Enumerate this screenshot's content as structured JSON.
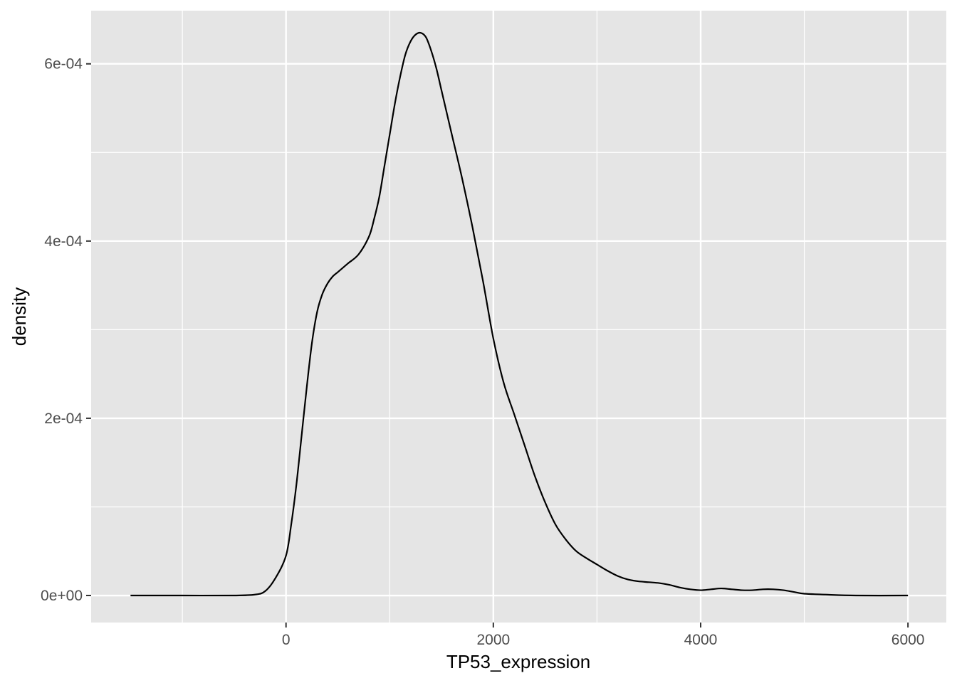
{
  "chart_data": {
    "type": "area",
    "title": "",
    "xlabel": "TP53_expression",
    "ylabel": "density",
    "xlim": [
      -1880,
      6370
    ],
    "ylim": [
      -3.05e-05,
      0.00066
    ],
    "x_ticks": [
      0,
      2000,
      4000,
      6000
    ],
    "x_tick_labels": [
      "0",
      "2000",
      "4000",
      "6000"
    ],
    "x_minor_ticks": [
      -1000,
      1000,
      3000,
      5000
    ],
    "y_ticks": [
      0,
      0.0002,
      0.0004,
      0.0006
    ],
    "y_tick_labels": [
      "0e+00",
      "2e-04",
      "4e-04",
      "6e-04"
    ],
    "y_minor_ticks": [
      0.0001,
      0.0003,
      0.0005
    ],
    "grid": true,
    "legend": "none",
    "colors": {
      "panel": "#e5e5e5",
      "grid": "#ffffff",
      "line": "#000000",
      "tick_text": "#4d4d4d"
    },
    "series": [
      {
        "x": [
          -1500,
          -1000,
          -500,
          -300,
          -200,
          -100,
          0,
          50,
          100,
          150,
          200,
          250,
          300,
          350,
          400,
          450,
          500,
          550,
          600,
          700,
          800,
          850,
          900,
          950,
          1000,
          1050,
          1100,
          1150,
          1200,
          1250,
          1300,
          1350,
          1400,
          1450,
          1500,
          1550,
          1600,
          1700,
          1800,
          1900,
          2000,
          2100,
          2200,
          2300,
          2400,
          2500,
          2600,
          2700,
          2800,
          2900,
          3000,
          3100,
          3200,
          3300,
          3400,
          3500,
          3600,
          3700,
          3800,
          3900,
          4000,
          4100,
          4200,
          4300,
          4400,
          4500,
          4600,
          4700,
          4800,
          4900,
          5000,
          5200,
          5500,
          6000
        ],
        "values": [
          0.0,
          0.0,
          0.0,
          1e-06,
          5e-06,
          2e-05,
          4.5e-05,
          8e-05,
          0.000125,
          0.00018,
          0.000235,
          0.000285,
          0.00032,
          0.00034,
          0.000352,
          0.00036,
          0.000365,
          0.00037,
          0.000375,
          0.000385,
          0.000405,
          0.000425,
          0.00045,
          0.000485,
          0.00052,
          0.000555,
          0.000585,
          0.00061,
          0.000625,
          0.000633,
          0.000635,
          0.00063,
          0.000615,
          0.000595,
          0.00057,
          0.000545,
          0.00052,
          0.00047,
          0.000415,
          0.000355,
          0.00029,
          0.00024,
          0.000205,
          0.00017,
          0.000135,
          0.000105,
          8e-05,
          6.3e-05,
          5e-05,
          4.2e-05,
          3.5e-05,
          2.8e-05,
          2.2e-05,
          1.8e-05,
          1.6e-05,
          1.5e-05,
          1.4e-05,
          1.2e-05,
          9e-06,
          7e-06,
          6e-06,
          7e-06,
          8e-06,
          7e-06,
          6e-06,
          6e-06,
          7e-06,
          7e-06,
          6e-06,
          4e-06,
          2e-06,
          1e-06,
          0.0,
          0.0
        ]
      }
    ]
  }
}
